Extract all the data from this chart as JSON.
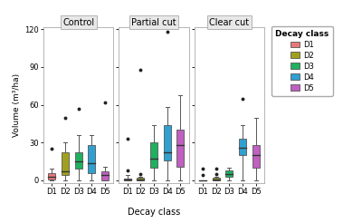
{
  "panels": [
    "Control",
    "Partial cut",
    "Clear cut"
  ],
  "decay_classes": [
    "D1",
    "D2",
    "D3",
    "D4",
    "D5"
  ],
  "colors": {
    "D1": "#e87878",
    "D2": "#a0a020",
    "D3": "#20b060",
    "D4": "#30a0d0",
    "D5": "#c060c0"
  },
  "ylabel": "Volume (m³/ha)",
  "xlabel": "Decay class",
  "ylim": [
    -2,
    122
  ],
  "yticks": [
    0,
    30,
    60,
    90,
    120
  ],
  "boxplot_data": {
    "Control": {
      "D1": {
        "q1": 0.5,
        "median": 2.5,
        "q3": 6,
        "whislo": 0,
        "whishi": 9,
        "fliers": [
          25
        ]
      },
      "D2": {
        "q1": 4,
        "median": 7,
        "q3": 22,
        "whislo": 0,
        "whishi": 30,
        "fliers": [
          50
        ]
      },
      "D3": {
        "q1": 9,
        "median": 15,
        "q3": 22,
        "whislo": 0,
        "whishi": 36,
        "fliers": [
          57
        ]
      },
      "D4": {
        "q1": 6,
        "median": 14,
        "q3": 28,
        "whislo": 0,
        "whishi": 36,
        "fliers": []
      },
      "D5": {
        "q1": 0,
        "median": 4,
        "q3": 7,
        "whislo": 0,
        "whishi": 11,
        "fliers": [
          62
        ]
      }
    },
    "Partial cut": {
      "D1": {
        "q1": 0,
        "median": 0.5,
        "q3": 1.5,
        "whislo": 0,
        "whishi": 4,
        "fliers": [
          8,
          33
        ]
      },
      "D2": {
        "q1": 0,
        "median": 1,
        "q3": 2,
        "whislo": 0,
        "whishi": 3,
        "fliers": [
          5,
          88
        ]
      },
      "D3": {
        "q1": 10,
        "median": 17,
        "q3": 30,
        "whislo": 0,
        "whishi": 44,
        "fliers": []
      },
      "D4": {
        "q1": 16,
        "median": 22,
        "q3": 44,
        "whislo": 0,
        "whishi": 58,
        "fliers": [
          118
        ]
      },
      "D5": {
        "q1": 11,
        "median": 28,
        "q3": 40,
        "whislo": 0,
        "whishi": 68,
        "fliers": []
      }
    },
    "Clear cut": {
      "D1": {
        "q1": 0,
        "median": 0,
        "q3": 0,
        "whislo": 0,
        "whishi": 0,
        "fliers": [
          4,
          9
        ]
      },
      "D2": {
        "q1": 0,
        "median": 1,
        "q3": 2,
        "whislo": 0,
        "whishi": 3,
        "fliers": [
          5,
          9
        ]
      },
      "D3": {
        "q1": 3,
        "median": 5,
        "q3": 8,
        "whislo": 0,
        "whishi": 10,
        "fliers": []
      },
      "D4": {
        "q1": 20,
        "median": 26,
        "q3": 33,
        "whislo": 0,
        "whishi": 44,
        "fliers": [
          65
        ]
      },
      "D5": {
        "q1": 10,
        "median": 20,
        "q3": 28,
        "whislo": 0,
        "whishi": 50,
        "fliers": []
      }
    }
  },
  "background_color": "#ffffff",
  "panel_bg": "#ffffff",
  "facet_label_bg": "#e8e8e8",
  "grid_color": "#ffffff",
  "spine_color": "#aaaaaa"
}
